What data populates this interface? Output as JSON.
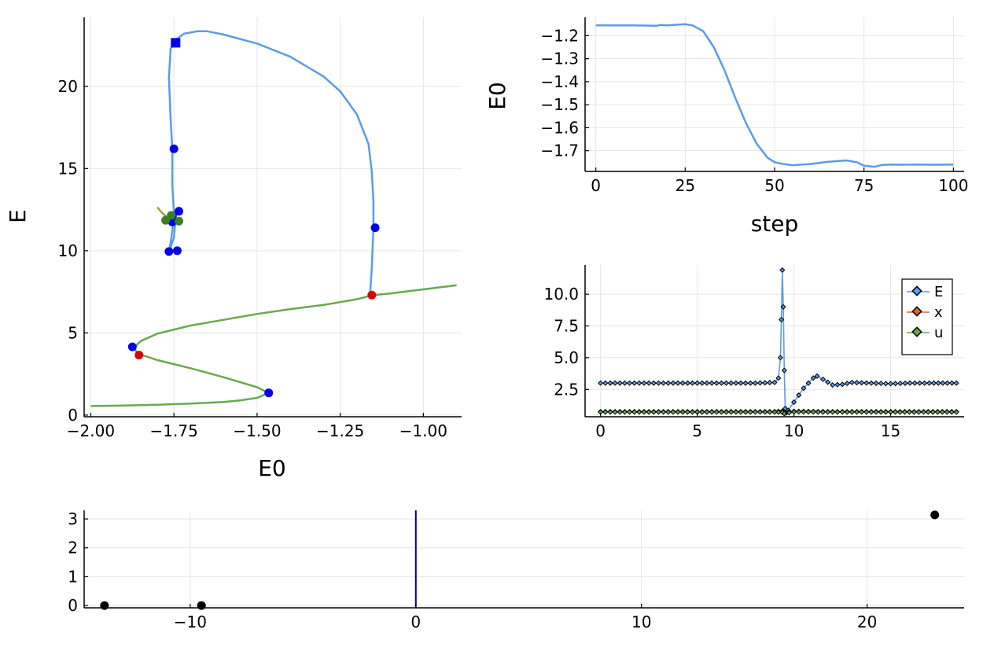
{
  "colors": {
    "blue_line": "#5b9bea",
    "green_line": "#6aa84f",
    "blue_point": "#0000ee",
    "red_point": "#dd0000",
    "green_point": "#3b7f22",
    "olive_line": "#a89a3a",
    "black_point": "#000000",
    "vline": "#00008b",
    "orange_line": "#e0632e"
  },
  "chart_data": [
    {
      "id": "bifurcation",
      "type": "line",
      "xlabel": "E0",
      "ylabel": "E",
      "xlim": [
        -2.02,
        -0.885
      ],
      "ylim": [
        -0.1,
        24.2
      ],
      "xticks": [
        -2.0,
        -1.75,
        -1.5,
        -1.25,
        -1.0
      ],
      "xtick_labels": [
        "−2.00",
        "−1.75",
        "−1.50",
        "−1.25",
        "−1.00"
      ],
      "yticks": [
        0,
        5,
        10,
        15,
        20
      ],
      "ytick_labels": [
        "0",
        "5",
        "10",
        "15",
        "20"
      ],
      "grid": true,
      "series": [
        {
          "color_key": "green_line",
          "x": [
            -2.0,
            -1.9,
            -1.8,
            -1.7,
            -1.6,
            -1.55,
            -1.5,
            -1.465,
            -1.5,
            -1.6,
            -1.7,
            -1.8,
            -1.86,
            -1.87,
            -1.85,
            -1.8,
            -1.7,
            -1.6,
            -1.5,
            -1.4,
            -1.3,
            -1.2,
            -1.15,
            -1.1,
            -1.0,
            -0.9
          ],
          "y": [
            0.55,
            0.58,
            0.63,
            0.7,
            0.8,
            0.9,
            1.05,
            1.35,
            1.7,
            2.3,
            2.85,
            3.35,
            3.75,
            4.1,
            4.5,
            4.95,
            5.45,
            5.8,
            6.15,
            6.45,
            6.7,
            7.05,
            7.3,
            7.4,
            7.65,
            7.9
          ]
        },
        {
          "color_key": "blue_line",
          "x": [
            -1.16,
            -1.155,
            -1.15,
            -1.15,
            -1.155,
            -1.165,
            -1.2,
            -1.25,
            -1.3,
            -1.4,
            -1.5,
            -1.6,
            -1.65,
            -1.68,
            -1.72,
            -1.74,
            -1.76,
            -1.765,
            -1.76,
            -1.755,
            -1.755,
            -1.75,
            -1.755,
            -1.76,
            -1.765,
            -1.76,
            -1.75,
            -1.745,
            -1.74
          ],
          "y": [
            7.4,
            9.0,
            11.4,
            13.0,
            14.8,
            16.5,
            18.3,
            19.7,
            20.6,
            21.8,
            22.6,
            23.15,
            23.35,
            23.35,
            23.2,
            22.9,
            22.3,
            20.5,
            18.0,
            16.2,
            14.0,
            12.3,
            11.2,
            10.5,
            9.9,
            10.2,
            10.8,
            12.0,
            12.4
          ]
        },
        {
          "color_key": "olive_line",
          "x": [
            -1.8,
            -1.79,
            -1.78,
            -1.77,
            -1.76,
            -1.755,
            -1.75
          ],
          "y": [
            12.65,
            12.4,
            12.2,
            12.05,
            11.95,
            11.85,
            11.75
          ]
        }
      ],
      "points": [
        {
          "color_key": "blue_point",
          "shape": "square",
          "x": -1.745,
          "y": 22.65
        },
        {
          "color_key": "blue_point",
          "shape": "circle",
          "x": -1.75,
          "y": 16.2
        },
        {
          "color_key": "blue_point",
          "shape": "circle",
          "x": -1.145,
          "y": 11.4
        },
        {
          "color_key": "blue_point",
          "shape": "circle",
          "x": -1.735,
          "y": 12.4
        },
        {
          "color_key": "blue_point",
          "shape": "circle",
          "x": -1.755,
          "y": 12.1
        },
        {
          "color_key": "blue_point",
          "shape": "circle",
          "x": -1.755,
          "y": 11.75
        },
        {
          "color_key": "blue_point",
          "shape": "circle",
          "x": -1.765,
          "y": 9.95
        },
        {
          "color_key": "blue_point",
          "shape": "circle",
          "x": -1.74,
          "y": 10.0
        },
        {
          "color_key": "blue_point",
          "shape": "circle",
          "x": -1.875,
          "y": 4.15
        },
        {
          "color_key": "blue_point",
          "shape": "circle",
          "x": -1.465,
          "y": 1.35
        },
        {
          "color_key": "red_point",
          "shape": "circle",
          "x": -1.855,
          "y": 3.65
        },
        {
          "color_key": "red_point",
          "shape": "circle",
          "x": -1.155,
          "y": 7.3
        },
        {
          "color_key": "green_point",
          "shape": "circle",
          "x": -1.775,
          "y": 11.85
        },
        {
          "color_key": "green_point",
          "shape": "circle",
          "x": -1.735,
          "y": 11.8
        },
        {
          "color_key": "green_point",
          "shape": "circle",
          "x": -1.758,
          "y": 12.15
        }
      ]
    },
    {
      "id": "step-plot",
      "type": "line",
      "xlabel": "step",
      "ylabel": "E0",
      "xlim": [
        -3,
        103
      ],
      "ylim": [
        -1.79,
        -1.12
      ],
      "xticks": [
        0,
        25,
        50,
        75,
        100
      ],
      "xtick_labels": [
        "0",
        "25",
        "50",
        "75",
        "100"
      ],
      "yticks": [
        -1.2,
        -1.3,
        -1.4,
        -1.5,
        -1.6,
        -1.7
      ],
      "ytick_labels": [
        "−1.2",
        "−1.3",
        "−1.4",
        "−1.5",
        "−1.6",
        "−1.7"
      ],
      "grid": true,
      "series": [
        {
          "color_key": "blue_line",
          "x": [
            0,
            10,
            17,
            18,
            20,
            25,
            27,
            30,
            33,
            36,
            39,
            42,
            45,
            48,
            50,
            52,
            55,
            60,
            65,
            70,
            73,
            75,
            78,
            80,
            83,
            85,
            90,
            95,
            100
          ],
          "y": [
            -1.155,
            -1.155,
            -1.157,
            -1.153,
            -1.155,
            -1.15,
            -1.155,
            -1.18,
            -1.25,
            -1.35,
            -1.47,
            -1.58,
            -1.67,
            -1.73,
            -1.75,
            -1.757,
            -1.763,
            -1.758,
            -1.748,
            -1.742,
            -1.75,
            -1.765,
            -1.77,
            -1.762,
            -1.76,
            -1.761,
            -1.76,
            -1.761,
            -1.76
          ]
        }
      ]
    },
    {
      "id": "time-series",
      "type": "line",
      "xlim": [
        -0.8,
        18.8
      ],
      "ylim": [
        0.35,
        12.3
      ],
      "xticks": [
        0,
        5,
        10,
        15
      ],
      "xtick_labels": [
        "0",
        "5",
        "10",
        "15"
      ],
      "yticks": [
        2.5,
        5.0,
        7.5,
        10.0
      ],
      "ytick_labels": [
        "2.5",
        "5.0",
        "7.5",
        "10.0"
      ],
      "grid": true,
      "legend": "top-right",
      "legend_entries": [
        "E",
        "x",
        "u"
      ],
      "series": [
        {
          "name": "E",
          "color_key": "blue_line",
          "x": [
            0,
            2,
            4,
            6,
            8,
            9.0,
            9.2,
            9.3,
            9.35,
            9.4,
            9.45,
            9.5,
            9.55,
            9.6,
            9.7,
            10.0,
            10.5,
            11.0,
            11.2,
            11.5,
            12.0,
            12.5,
            13.0,
            14.0,
            15.0,
            16.0,
            17.0,
            18.4
          ],
          "y": [
            3.0,
            3.0,
            3.0,
            3.0,
            3.0,
            3.05,
            3.4,
            5.0,
            8.0,
            11.9,
            9.0,
            4.0,
            1.0,
            0.65,
            0.85,
            1.5,
            2.6,
            3.4,
            3.55,
            3.3,
            2.85,
            2.9,
            3.05,
            3.0,
            2.95,
            3.0,
            3.0,
            3.0
          ]
        },
        {
          "name": "x",
          "color_key": "orange_line",
          "x": [
            0,
            5,
            9.0,
            9.4,
            9.5,
            10.0,
            12.0,
            15.0,
            18.4
          ],
          "y": [
            0.75,
            0.75,
            0.75,
            0.8,
            0.7,
            0.78,
            0.75,
            0.75,
            0.75
          ]
        },
        {
          "name": "u",
          "color_key": "green_line",
          "x": [
            0,
            5,
            9.0,
            9.4,
            9.5,
            10.0,
            12.0,
            15.0,
            18.4
          ],
          "y": [
            0.72,
            0.72,
            0.72,
            0.7,
            0.6,
            0.74,
            0.72,
            0.72,
            0.72
          ]
        }
      ]
    },
    {
      "id": "eigenvalues",
      "type": "scatter",
      "xlim": [
        -14.7,
        24.3
      ],
      "ylim": [
        -0.08,
        3.3
      ],
      "xticks": [
        -10,
        0,
        10,
        20
      ],
      "xtick_labels": [
        "−10",
        "0",
        "10",
        "20"
      ],
      "yticks": [
        0,
        1,
        2,
        3
      ],
      "ytick_labels": [
        "0",
        "1",
        "2",
        "3"
      ],
      "grid": true,
      "vline_x": 0,
      "points": [
        {
          "color_key": "black_point",
          "x": -13.8,
          "y": 0.0
        },
        {
          "color_key": "black_point",
          "x": -9.5,
          "y": 0.0
        },
        {
          "color_key": "black_point",
          "x": 23.0,
          "y": 3.14
        }
      ]
    }
  ]
}
